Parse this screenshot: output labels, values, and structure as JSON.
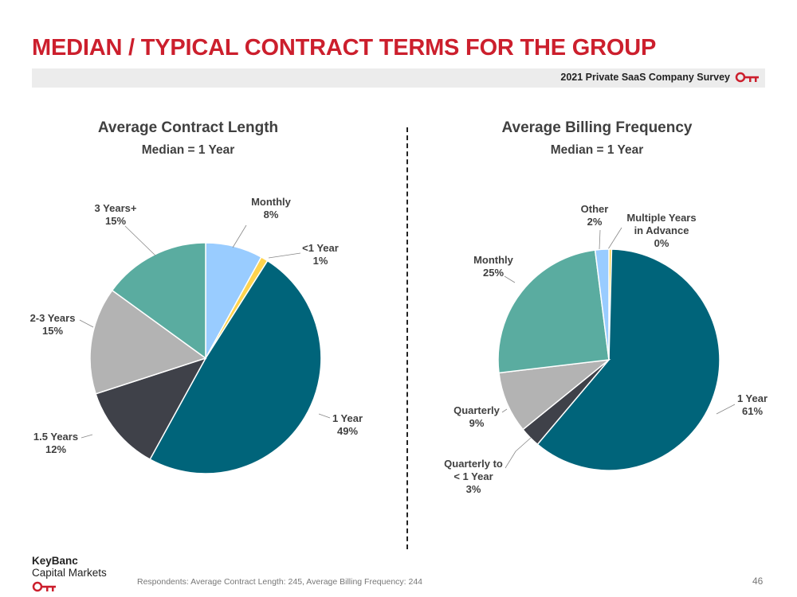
{
  "header": {
    "title": "MEDIAN / TYPICAL CONTRACT TERMS FOR THE GROUP",
    "survey_label": "2021 Private SaaS Company Survey"
  },
  "colors": {
    "brand_red": "#cc1f2d",
    "teal_dark": "#00647a",
    "teal_light": "#5aaca0",
    "light_blue": "#99ccff",
    "yellow": "#ffd34d",
    "gray": "#b3b3b3",
    "charcoal": "#3f4149"
  },
  "chart_data": [
    {
      "type": "pie",
      "title": "Average Contract Length",
      "subtitle": "Median = 1 Year",
      "slices": [
        {
          "label": "Monthly",
          "value": 8,
          "value_label": "8%",
          "color": "#99ccff"
        },
        {
          "label": "<1 Year",
          "value": 1,
          "value_label": "1%",
          "color": "#ffd34d"
        },
        {
          "label": "1 Year",
          "value": 49,
          "value_label": "49%",
          "color": "#00647a"
        },
        {
          "label": "1.5 Years",
          "value": 12,
          "value_label": "12%",
          "color": "#3f4149"
        },
        {
          "label": "2-3 Years",
          "value": 15,
          "value_label": "15%",
          "color": "#b3b3b3"
        },
        {
          "label": "3 Years+",
          "value": 15,
          "value_label": "15%",
          "color": "#5aaca0"
        }
      ]
    },
    {
      "type": "pie",
      "title": "Average Billing Frequency",
      "subtitle": "Median = 1 Year",
      "slices": [
        {
          "label": "Multiple Years in Advance",
          "value": 0.4,
          "value_label": "0%",
          "color": "#ffd34d"
        },
        {
          "label": "1 Year",
          "value": 61,
          "value_label": "61%",
          "color": "#00647a"
        },
        {
          "label": "Quarterly to < 1 Year",
          "value": 3,
          "value_label": "3%",
          "color": "#3f4149"
        },
        {
          "label": "Quarterly",
          "value": 9,
          "value_label": "9%",
          "color": "#b3b3b3"
        },
        {
          "label": "Monthly",
          "value": 25,
          "value_label": "25%",
          "color": "#5aaca0"
        },
        {
          "label": "Other",
          "value": 2,
          "value_label": "2%",
          "color": "#99ccff"
        }
      ]
    }
  ],
  "footer": {
    "brand_line1": "KeyBanc",
    "brand_line2": "Capital Markets",
    "respondents": "Respondents: Average Contract Length: 245, Average Billing Frequency: 244",
    "page_number": "46"
  }
}
